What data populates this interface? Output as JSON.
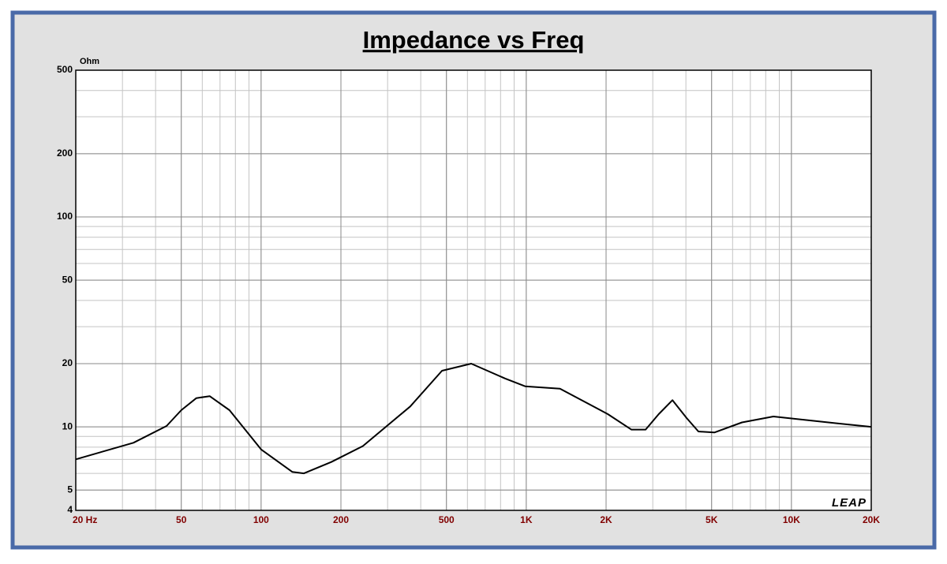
{
  "chart_data": {
    "type": "line",
    "title": "Impedance vs Freq",
    "y_label": "Ohm",
    "annotation": "LEAP",
    "x_scale": "log",
    "y_scale": "log",
    "grid": true,
    "xlim": [
      20,
      20000
    ],
    "xticks": [
      {
        "value": 20,
        "label": "20 Hz"
      },
      50,
      100,
      200,
      500,
      {
        "value": 1000,
        "label": "1K"
      },
      {
        "value": 2000,
        "label": "2K"
      },
      {
        "value": 5000,
        "label": "5K"
      },
      {
        "value": 10000,
        "label": "10K"
      },
      {
        "value": 20000,
        "label": "20K"
      }
    ],
    "ylim": [
      4,
      500
    ],
    "yticks": [
      4,
      5,
      10,
      20,
      50,
      100,
      200,
      500
    ],
    "series": [
      {
        "color": "#000000",
        "x": [
          20,
          33,
          44,
          50,
          57,
          64,
          76,
          100,
          131,
          145,
          184,
          242,
          365,
          481,
          620,
          832,
          990,
          1340,
          2030,
          2490,
          2820,
          3160,
          3560,
          4030,
          4460,
          5120,
          6510,
          8550,
          11200,
          14800,
          20000
        ],
        "values": [
          7.0,
          8.4,
          10.1,
          12.0,
          13.7,
          14.0,
          12.0,
          7.8,
          6.1,
          6.0,
          6.8,
          8.1,
          12.5,
          18.5,
          20.0,
          17.0,
          15.6,
          15.2,
          11.5,
          9.7,
          9.7,
          11.5,
          13.4,
          11.0,
          9.5,
          9.4,
          10.5,
          11.2,
          10.8,
          10.4,
          10.0
        ]
      }
    ]
  }
}
